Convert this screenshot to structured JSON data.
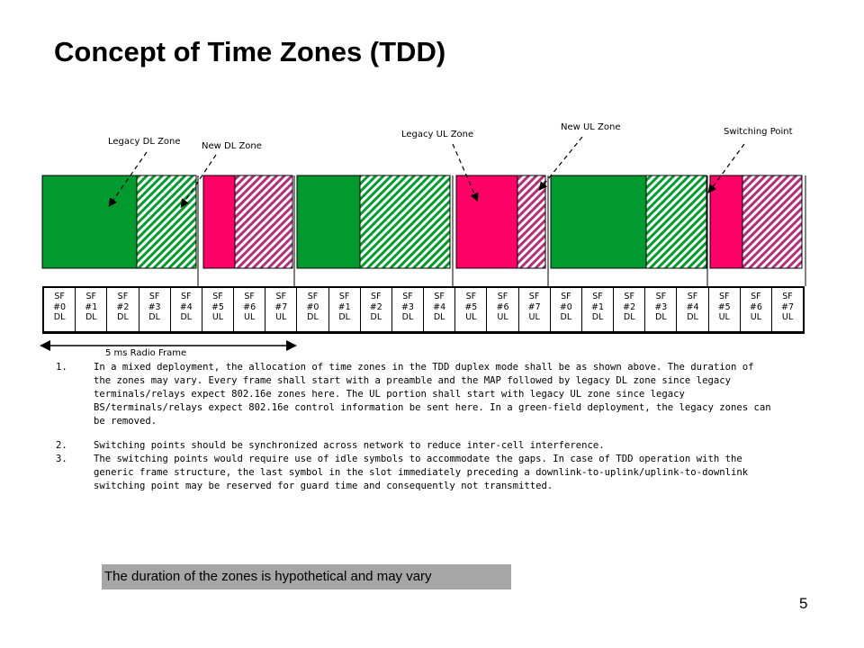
{
  "title": "Concept of Time Zones (TDD)",
  "callouts": {
    "legacy_dl": "Legacy DL Zone",
    "new_dl": "New DL Zone",
    "legacy_ul": "Legacy UL Zone",
    "new_ul": "New UL Zone",
    "switching": "Switching Point"
  },
  "colors": {
    "legacy_dl": "#009a2e",
    "new_dl_hatch": "#009a2e",
    "legacy_ul": "#ff0066",
    "new_ul_hatch": "#b0307a"
  },
  "subframes": [
    {
      "id": "SF",
      "num": "#0",
      "dir": "DL"
    },
    {
      "id": "SF",
      "num": "#1",
      "dir": "DL"
    },
    {
      "id": "SF",
      "num": "#2",
      "dir": "DL"
    },
    {
      "id": "SF",
      "num": "#3",
      "dir": "DL"
    },
    {
      "id": "SF",
      "num": "#4",
      "dir": "DL"
    },
    {
      "id": "SF",
      "num": "#5",
      "dir": "UL"
    },
    {
      "id": "SF",
      "num": "#6",
      "dir": "UL"
    },
    {
      "id": "SF",
      "num": "#7",
      "dir": "UL"
    },
    {
      "id": "SF",
      "num": "#0",
      "dir": "DL"
    },
    {
      "id": "SF",
      "num": "#1",
      "dir": "DL"
    },
    {
      "id": "SF",
      "num": "#2",
      "dir": "DL"
    },
    {
      "id": "SF",
      "num": "#3",
      "dir": "DL"
    },
    {
      "id": "SF",
      "num": "#4",
      "dir": "DL"
    },
    {
      "id": "SF",
      "num": "#5",
      "dir": "UL"
    },
    {
      "id": "SF",
      "num": "#6",
      "dir": "UL"
    },
    {
      "id": "SF",
      "num": "#7",
      "dir": "UL"
    },
    {
      "id": "SF",
      "num": "#0",
      "dir": "DL"
    },
    {
      "id": "SF",
      "num": "#1",
      "dir": "DL"
    },
    {
      "id": "SF",
      "num": "#2",
      "dir": "DL"
    },
    {
      "id": "SF",
      "num": "#3",
      "dir": "DL"
    },
    {
      "id": "SF",
      "num": "#4",
      "dir": "DL"
    },
    {
      "id": "SF",
      "num": "#5",
      "dir": "UL"
    },
    {
      "id": "SF",
      "num": "#6",
      "dir": "UL"
    },
    {
      "id": "SF",
      "num": "#7",
      "dir": "UL"
    }
  ],
  "frame_label": "5 ms Radio Frame",
  "notes": [
    {
      "num": "1.",
      "text": "In a mixed deployment, the allocation of time zones in the TDD duplex mode shall be as shown above. The duration of the zones may vary. Every frame shall start with a preamble and the MAP followed by legacy DL zone since legacy terminals/relays expect 802.16e zones here. The UL portion shall start with legacy UL zone since legacy BS/terminals/relays expect 802.16e control information be sent here. In a green-field deployment, the legacy zones can be removed."
    },
    {
      "num": "2.",
      "text": "Switching points should be synchronized across network to reduce inter-cell interference."
    },
    {
      "num": "3.",
      "text": "The switching points would require use of idle symbols to accommodate the gaps. In case of TDD operation with the generic frame structure, the last symbol in the slot immediately preceding a downlink-to-uplink/uplink-to-downlink switching point may be reserved for guard time and consequently not transmitted."
    }
  ],
  "banner": "The duration of the zones is hypothetical and may vary",
  "page_number": "5"
}
